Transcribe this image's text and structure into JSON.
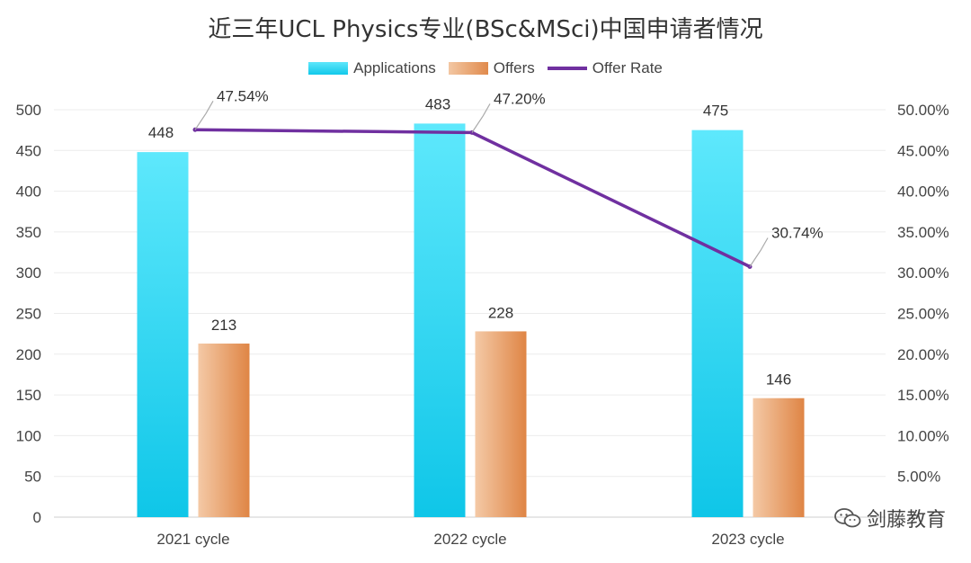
{
  "chart_data": {
    "type": "bar",
    "title": "近三年UCL Physics专业(BSc&MSci)中国申请者情况",
    "categories": [
      "2021 cycle",
      "2022 cycle",
      "2023 cycle"
    ],
    "series": [
      {
        "name": "Applications",
        "values": [
          448,
          483,
          475
        ],
        "color": "#29cfee",
        "axis": "left"
      },
      {
        "name": "Offers",
        "values": [
          213,
          228,
          146
        ],
        "color": "#e38d50",
        "axis": "left"
      },
      {
        "name": "Offer Rate",
        "type": "line",
        "values": [
          47.54,
          47.2,
          30.74
        ],
        "color": "#7030a0",
        "axis": "right"
      }
    ],
    "data_labels": {
      "applications": [
        "448",
        "483",
        "475"
      ],
      "offers": [
        "213",
        "228",
        "146"
      ],
      "offer_rate": [
        "47.54%",
        "47.20%",
        "30.74%"
      ]
    },
    "y_left": {
      "min": 0,
      "max": 500,
      "step": 50,
      "ticks": [
        "0",
        "50",
        "100",
        "150",
        "200",
        "250",
        "300",
        "350",
        "400",
        "450",
        "500"
      ]
    },
    "y_right": {
      "min": 0,
      "max": 50,
      "step": 5,
      "ticks": [
        "5.00%",
        "10.00%",
        "15.00%",
        "20.00%",
        "25.00%",
        "30.00%",
        "35.00%",
        "40.00%",
        "45.00%",
        "50.00%"
      ]
    },
    "grid": true,
    "legend_position": "top-center"
  },
  "brand": {
    "label": "剑藤教育",
    "icon": "wechat-icon"
  }
}
